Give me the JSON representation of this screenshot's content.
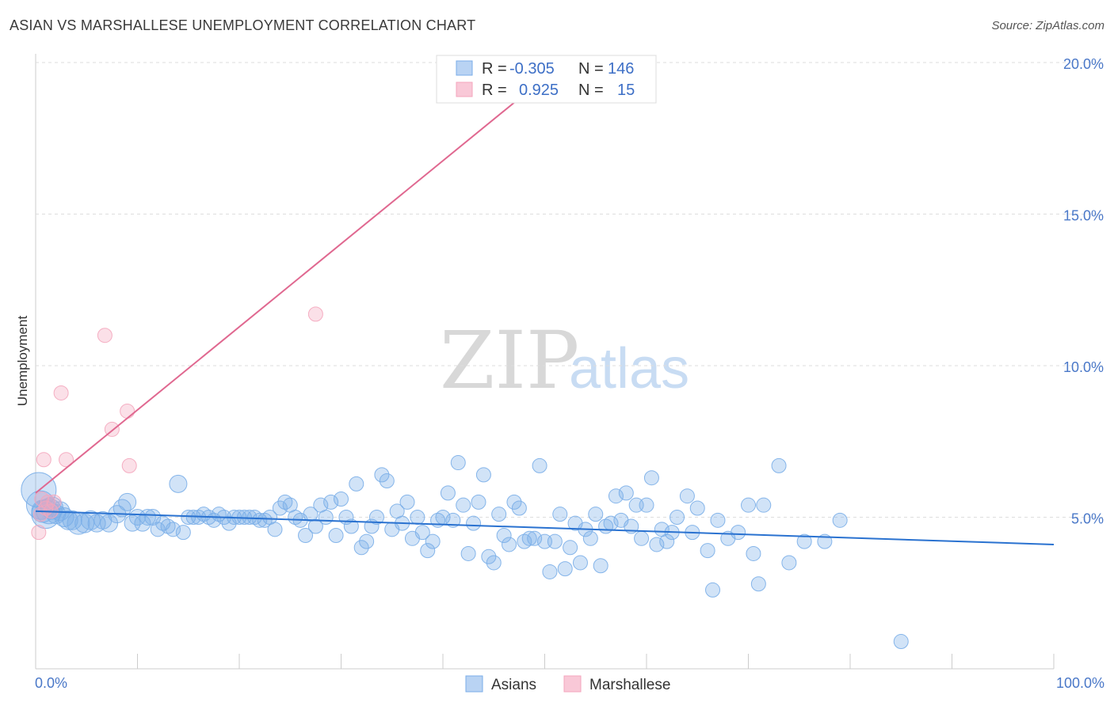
{
  "title": "ASIAN VS MARSHALLESE UNEMPLOYMENT CORRELATION CHART",
  "source": "Source: ZipAtlas.com",
  "watermark": {
    "zip": "ZIP",
    "atlas": "atlas"
  },
  "chart_data": {
    "type": "scatter",
    "title": "ASIAN VS MARSHALLESE UNEMPLOYMENT CORRELATION CHART",
    "xlabel": "",
    "ylabel": "Unemployment",
    "xlim": [
      0,
      100
    ],
    "ylim": [
      0,
      20.5
    ],
    "x_tick_labels": [
      "0.0%",
      "100.0%"
    ],
    "y_ticks": [
      5,
      10,
      15,
      20
    ],
    "y_tick_labels": [
      "5.0%",
      "10.0%",
      "15.0%",
      "20.0%"
    ],
    "legend": [
      {
        "name": "Asians",
        "color": "#7aaee8",
        "r_label": "R =",
        "r_value": "-0.305",
        "n_label": "N =",
        "n_value": "146"
      },
      {
        "name": "Marshallese",
        "color": "#f4a6bd",
        "r_label": "R =",
        "r_value": "0.925",
        "n_label": "N =",
        "n_value": "15"
      }
    ],
    "series": [
      {
        "name": "Asians",
        "color": "#7aaee8",
        "trend_color": "#2a72d0",
        "trend": {
          "x": [
            0,
            100
          ],
          "y": [
            5.2,
            4.1
          ]
        },
        "points": [
          [
            0.3,
            5.9,
            22
          ],
          [
            0.5,
            5.4,
            18
          ],
          [
            0.7,
            5.2,
            14
          ],
          [
            1.0,
            5.1,
            18
          ],
          [
            1.3,
            5.2,
            16
          ],
          [
            1.6,
            5.3,
            14
          ],
          [
            2.0,
            5.1,
            12
          ],
          [
            2.4,
            5.2,
            12
          ],
          [
            2.8,
            5.0,
            12
          ],
          [
            3.2,
            4.9,
            12
          ],
          [
            3.6,
            4.9,
            12
          ],
          [
            4.2,
            4.8,
            14
          ],
          [
            4.8,
            4.8,
            12
          ],
          [
            5.4,
            4.9,
            12
          ],
          [
            6.0,
            4.8,
            11
          ],
          [
            6.6,
            4.9,
            11
          ],
          [
            7.2,
            4.8,
            11
          ],
          [
            8.0,
            5.1,
            11
          ],
          [
            8.5,
            5.3,
            11
          ],
          [
            9.0,
            5.5,
            11
          ],
          [
            9.5,
            4.8,
            10
          ],
          [
            10.0,
            5.0,
            10
          ],
          [
            10.5,
            4.8,
            10
          ],
          [
            11.0,
            5.0,
            10
          ],
          [
            11.5,
            5.0,
            10
          ],
          [
            12.0,
            4.6,
            9
          ],
          [
            12.5,
            4.8,
            9
          ],
          [
            13.0,
            4.7,
            9
          ],
          [
            13.5,
            4.6,
            9
          ],
          [
            14.0,
            6.1,
            11
          ],
          [
            14.5,
            4.5,
            9
          ],
          [
            15.0,
            5.0,
            9
          ],
          [
            15.5,
            5.0,
            9
          ],
          [
            16.0,
            5.0,
            9
          ],
          [
            16.5,
            5.1,
            9
          ],
          [
            17.0,
            5.0,
            9
          ],
          [
            17.5,
            4.9,
            9
          ],
          [
            18.0,
            5.1,
            9
          ],
          [
            18.5,
            5.0,
            9
          ],
          [
            19.0,
            4.8,
            9
          ],
          [
            19.5,
            5.0,
            9
          ],
          [
            20.0,
            5.0,
            9
          ],
          [
            20.5,
            5.0,
            9
          ],
          [
            21.0,
            5.0,
            9
          ],
          [
            21.5,
            5.0,
            9
          ],
          [
            22.0,
            4.9,
            9
          ],
          [
            22.5,
            4.9,
            9
          ],
          [
            23.0,
            5.0,
            9
          ],
          [
            23.5,
            4.6,
            9
          ],
          [
            24.0,
            5.3,
            9
          ],
          [
            24.5,
            5.5,
            9
          ],
          [
            25.0,
            5.4,
            9
          ],
          [
            25.5,
            5.0,
            9
          ],
          [
            26.0,
            4.9,
            9
          ],
          [
            26.5,
            4.4,
            9
          ],
          [
            27.0,
            5.1,
            9
          ],
          [
            27.5,
            4.7,
            9
          ],
          [
            28.0,
            5.4,
            9
          ],
          [
            28.5,
            5.0,
            9
          ],
          [
            29.0,
            5.5,
            9
          ],
          [
            29.5,
            4.4,
            9
          ],
          [
            30.0,
            5.6,
            9
          ],
          [
            30.5,
            5.0,
            9
          ],
          [
            31.0,
            4.7,
            9
          ],
          [
            31.5,
            6.1,
            9
          ],
          [
            32.0,
            4.0,
            9
          ],
          [
            32.5,
            4.2,
            9
          ],
          [
            33.0,
            4.7,
            9
          ],
          [
            33.5,
            5.0,
            9
          ],
          [
            34.0,
            6.4,
            9
          ],
          [
            34.5,
            6.2,
            9
          ],
          [
            35.0,
            4.6,
            9
          ],
          [
            35.5,
            5.2,
            9
          ],
          [
            36.0,
            4.8,
            9
          ],
          [
            36.5,
            5.5,
            9
          ],
          [
            37.0,
            4.3,
            9
          ],
          [
            37.5,
            5.0,
            9
          ],
          [
            38.0,
            4.5,
            9
          ],
          [
            38.5,
            3.9,
            9
          ],
          [
            39.0,
            4.2,
            9
          ],
          [
            39.5,
            4.9,
            9
          ],
          [
            40.0,
            5.0,
            9
          ],
          [
            40.5,
            5.8,
            9
          ],
          [
            41.0,
            4.9,
            9
          ],
          [
            41.5,
            6.8,
            9
          ],
          [
            42.0,
            5.4,
            9
          ],
          [
            42.5,
            3.8,
            9
          ],
          [
            43.0,
            4.8,
            9
          ],
          [
            43.5,
            5.5,
            9
          ],
          [
            44.0,
            6.4,
            9
          ],
          [
            44.5,
            3.7,
            9
          ],
          [
            45.0,
            3.5,
            9
          ],
          [
            45.5,
            5.1,
            9
          ],
          [
            46.0,
            4.4,
            9
          ],
          [
            46.5,
            4.1,
            9
          ],
          [
            47.0,
            5.5,
            9
          ],
          [
            47.5,
            5.3,
            9
          ],
          [
            48.0,
            4.2,
            9
          ],
          [
            48.5,
            4.3,
            9
          ],
          [
            49.0,
            4.3,
            9
          ],
          [
            49.5,
            6.7,
            9
          ],
          [
            50.0,
            4.2,
            9
          ],
          [
            50.5,
            3.2,
            9
          ],
          [
            51.0,
            4.2,
            9
          ],
          [
            51.5,
            5.1,
            9
          ],
          [
            52.0,
            3.3,
            9
          ],
          [
            52.5,
            4.0,
            9
          ],
          [
            53.0,
            4.8,
            9
          ],
          [
            53.5,
            3.5,
            9
          ],
          [
            54.0,
            4.6,
            9
          ],
          [
            54.5,
            4.3,
            9
          ],
          [
            55.0,
            5.1,
            9
          ],
          [
            55.5,
            3.4,
            9
          ],
          [
            56.0,
            4.7,
            9
          ],
          [
            56.5,
            4.8,
            9
          ],
          [
            57.0,
            5.7,
            9
          ],
          [
            57.5,
            4.9,
            9
          ],
          [
            58.0,
            5.8,
            9
          ],
          [
            58.5,
            4.7,
            9
          ],
          [
            59.0,
            5.4,
            9
          ],
          [
            59.5,
            4.3,
            9
          ],
          [
            60.0,
            5.4,
            9
          ],
          [
            60.5,
            6.3,
            9
          ],
          [
            61.0,
            4.1,
            9
          ],
          [
            61.5,
            4.6,
            9
          ],
          [
            62.0,
            4.2,
            9
          ],
          [
            62.5,
            4.5,
            9
          ],
          [
            63.0,
            5.0,
            9
          ],
          [
            64.0,
            5.7,
            9
          ],
          [
            64.5,
            4.5,
            9
          ],
          [
            65.0,
            5.3,
            9
          ],
          [
            66.0,
            3.9,
            9
          ],
          [
            66.5,
            2.6,
            9
          ],
          [
            67.0,
            4.9,
            9
          ],
          [
            68.0,
            4.3,
            9
          ],
          [
            69.0,
            4.5,
            9
          ],
          [
            70.0,
            5.4,
            9
          ],
          [
            70.5,
            3.8,
            9
          ],
          [
            71.0,
            2.8,
            9
          ],
          [
            71.5,
            5.4,
            9
          ],
          [
            73.0,
            6.7,
            9
          ],
          [
            74.0,
            3.5,
            9
          ],
          [
            75.5,
            4.2,
            9
          ],
          [
            77.5,
            4.2,
            9
          ],
          [
            79.0,
            4.9,
            9
          ],
          [
            85.0,
            0.9,
            9
          ]
        ]
      },
      {
        "name": "Marshallese",
        "color": "#f4a6bd",
        "trend_color": "#e06890",
        "trend": {
          "x": [
            0,
            50
          ],
          "y": [
            5.8,
            19.5
          ]
        },
        "points": [
          [
            0.3,
            4.5,
            9
          ],
          [
            0.5,
            5.1,
            9
          ],
          [
            0.6,
            5.6,
            9
          ],
          [
            0.8,
            6.9,
            9
          ],
          [
            1.0,
            5.3,
            9
          ],
          [
            1.2,
            5.5,
            9
          ],
          [
            1.5,
            5.2,
            9
          ],
          [
            1.8,
            5.5,
            9
          ],
          [
            2.5,
            9.1,
            9
          ],
          [
            3.0,
            6.9,
            9
          ],
          [
            6.8,
            11.0,
            9
          ],
          [
            7.5,
            7.9,
            9
          ],
          [
            9.0,
            8.5,
            9
          ],
          [
            9.2,
            6.7,
            9
          ],
          [
            27.5,
            11.7,
            9
          ]
        ]
      }
    ]
  }
}
